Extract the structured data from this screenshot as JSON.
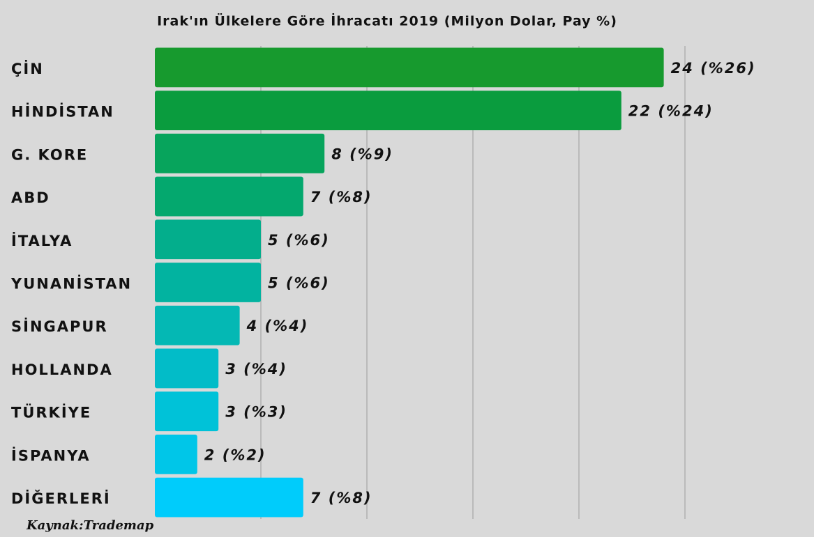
{
  "chart_data": {
    "type": "bar",
    "orientation": "horizontal",
    "title": "Irak'ın Ülkelere Göre İhracatı 2019 (Milyon Dolar, Pay %)",
    "source": "Kaynak:Trademap",
    "categories": [
      "ÇİN",
      "HİNDİSTAN",
      "G. KORE",
      "ABD",
      "İTALYA",
      "YUNANİSTAN",
      "SİNGAPUR",
      "HOLLANDA",
      "TÜRKİYE",
      "İSPANYA",
      "DİĞERLERİ"
    ],
    "values": [
      24,
      22,
      8,
      7,
      5,
      5,
      4,
      3,
      3,
      2,
      7
    ],
    "value_labels": [
      "24 (%26)",
      "22 (%24)",
      "8 (%9)",
      "7 (%8)",
      "5 (%6)",
      "5 (%6)",
      "4 (%4)",
      "3 (%4)",
      "3 (%3)",
      "2 (%2)",
      "7 (%8)"
    ],
    "colors": [
      "#179a2e",
      "#0a9c3e",
      "#07a45c",
      "#04a86e",
      "#03ae8c",
      "#02b3a0",
      "#04b8b4",
      "#02bcc8",
      "#00c2d8",
      "#00c6e8",
      "#00ccfb"
    ],
    "xlim": [
      0,
      25
    ],
    "xticks": [
      5,
      10,
      15,
      20,
      25
    ],
    "grid": true
  }
}
